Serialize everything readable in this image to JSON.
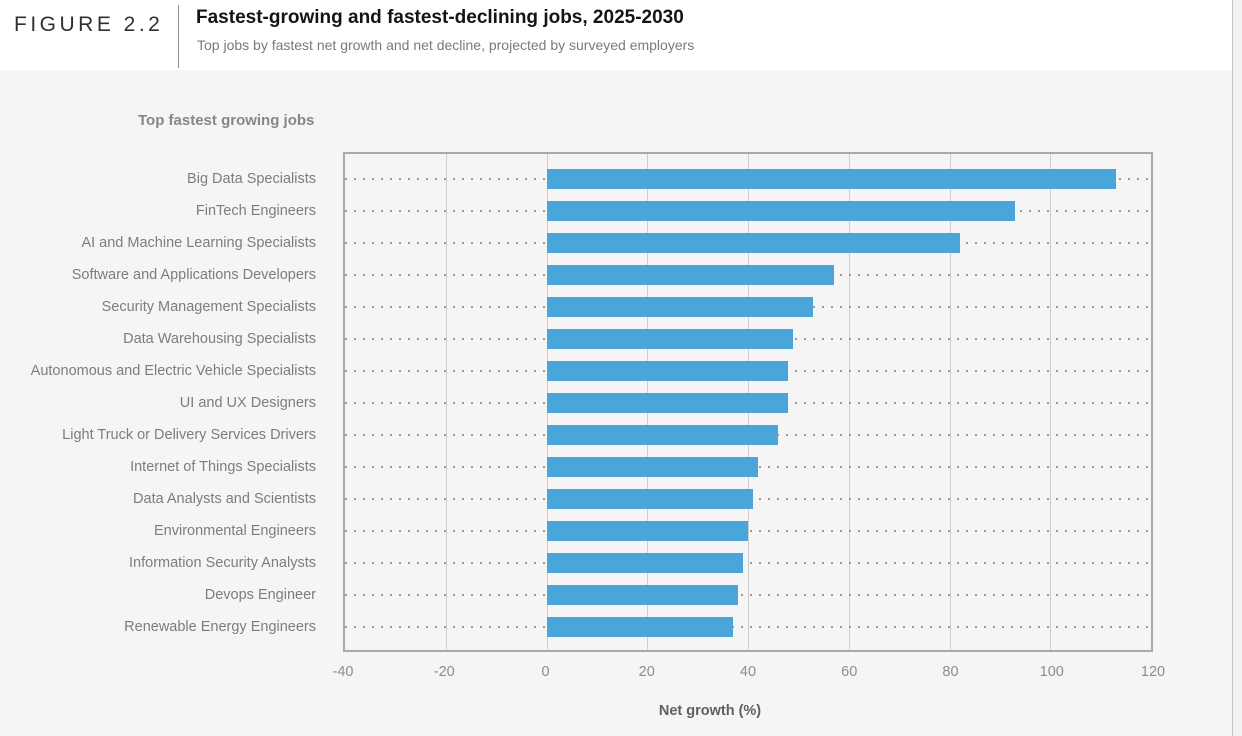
{
  "figure": {
    "label": "FIGURE 2.2",
    "title": "Fastest-growing and fastest-declining jobs, 2025-2030",
    "subtitle": "Top jobs by fastest net growth and net decline, projected by surveyed employers"
  },
  "section_title": "Top fastest growing jobs",
  "chart_data": {
    "type": "bar",
    "orientation": "horizontal",
    "title": "Top fastest growing jobs",
    "categories": [
      "Big Data Specialists",
      "FinTech Engineers",
      "AI and Machine Learning Specialists",
      "Software and Applications Developers",
      "Security Management Specialists",
      "Data Warehousing Specialists",
      "Autonomous and Electric Vehicle Specialists",
      "UI and UX Designers",
      "Light Truck or Delivery Services Drivers",
      "Internet of Things Specialists",
      "Data Analysts and Scientists",
      "Environmental Engineers",
      "Information Security Analysts",
      "Devops Engineer",
      "Renewable Energy Engineers"
    ],
    "values": [
      113,
      93,
      82,
      57,
      53,
      49,
      48,
      48,
      46,
      42,
      41,
      40,
      39,
      38,
      37
    ],
    "xlabel": "Net growth (%)",
    "xlim": [
      -40,
      120
    ],
    "xticks": [
      -40,
      -20,
      0,
      20,
      40,
      60,
      80,
      100,
      120
    ],
    "bar_start": 0,
    "grid": true,
    "leader_lines": "dotted",
    "legend": "none",
    "bar_color": "#4aa5da"
  },
  "colors": {
    "bar": "#4aa5da",
    "page_background": "#f5f5f5",
    "header_background": "#ffffff",
    "plot_frame": "#a9a9a9",
    "gridline": "#cfcfcf",
    "leader_dots": "#9a9a9a",
    "title_text": "#141414",
    "muted_text": "#7d7d7d"
  }
}
